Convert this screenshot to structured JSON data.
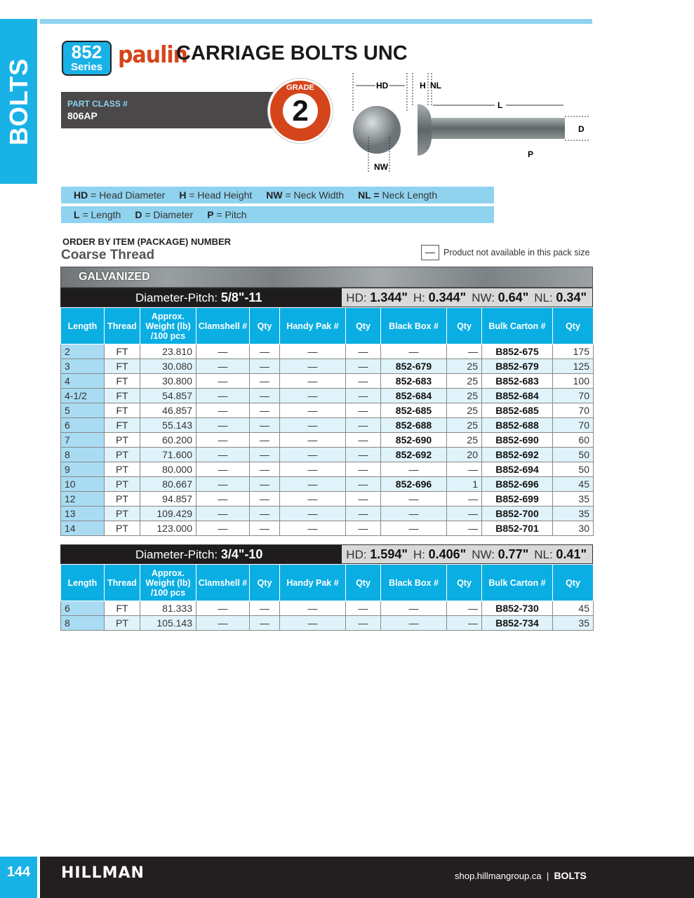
{
  "side_tab": "BOLTS",
  "series": {
    "number": "852",
    "label": "Series"
  },
  "brand": "paulin",
  "title": "CARRIAGE BOLTS UNC",
  "part_class": {
    "label": "PART CLASS #",
    "value": "806AP"
  },
  "grade": {
    "label": "GRADE",
    "value": "2"
  },
  "diagram_labels": {
    "hd": "HD",
    "h": "H",
    "nl": "NL",
    "l": "L",
    "d": "D",
    "p": "P",
    "nw": "NW"
  },
  "legend": {
    "row1": [
      {
        "k": "HD",
        "v": " = Head Diameter"
      },
      {
        "k": "H",
        "v": " = Head Height"
      },
      {
        "k": "NW",
        "v": " = Neck Width"
      },
      {
        "k": "NL =",
        "v": " Neck Length"
      }
    ],
    "row2": [
      {
        "k": "L",
        "v": " = Length"
      },
      {
        "k": "D",
        "v": " = Diameter"
      },
      {
        "k": "P",
        "v": " = Pitch"
      }
    ]
  },
  "order_heading": "ORDER BY ITEM (PACKAGE) NUMBER",
  "thread_heading": "Coarse Thread",
  "na_symbol": "—",
  "na_text": "Product not available in this pack size",
  "finish": "GALVANIZED",
  "columns": [
    "Length",
    "Thread",
    "Approx. Weight (lb) /100 pcs",
    "Clamshell #",
    "Qty",
    "Handy Pak #",
    "Qty",
    "Black Box #",
    "Qty",
    "Bulk Carton #",
    "Qty"
  ],
  "tables": [
    {
      "dp_label": "Diameter-Pitch: ",
      "dp_value": "5/8\"-11",
      "dims": [
        {
          "k": "HD: ",
          "v": "1.344\""
        },
        {
          "k": "H: ",
          "v": "0.344\""
        },
        {
          "k": "NW: ",
          "v": "0.64\""
        },
        {
          "k": "NL: ",
          "v": "0.34\""
        }
      ],
      "rows": [
        [
          "2",
          "FT",
          "23.810",
          "—",
          "—",
          "—",
          "—",
          "—",
          "—",
          "B852-675",
          "175"
        ],
        [
          "3",
          "FT",
          "30.080",
          "—",
          "—",
          "—",
          "—",
          "852-679",
          "25",
          "B852-679",
          "125"
        ],
        [
          "4",
          "FT",
          "30.800",
          "—",
          "—",
          "—",
          "—",
          "852-683",
          "25",
          "B852-683",
          "100"
        ],
        [
          "4-1/2",
          "FT",
          "54.857",
          "—",
          "—",
          "—",
          "—",
          "852-684",
          "25",
          "B852-684",
          "70"
        ],
        [
          "5",
          "FT",
          "46.857",
          "—",
          "—",
          "—",
          "—",
          "852-685",
          "25",
          "B852-685",
          "70"
        ],
        [
          "6",
          "FT",
          "55.143",
          "—",
          "—",
          "—",
          "—",
          "852-688",
          "25",
          "B852-688",
          "70"
        ],
        [
          "7",
          "PT",
          "60.200",
          "—",
          "—",
          "—",
          "—",
          "852-690",
          "25",
          "B852-690",
          "60"
        ],
        [
          "8",
          "PT",
          "71.600",
          "—",
          "—",
          "—",
          "—",
          "852-692",
          "20",
          "B852-692",
          "50"
        ],
        [
          "9",
          "PT",
          "80.000",
          "—",
          "—",
          "—",
          "—",
          "—",
          "—",
          "B852-694",
          "50"
        ],
        [
          "10",
          "PT",
          "80.667",
          "—",
          "—",
          "—",
          "—",
          "852-696",
          "1",
          "B852-696",
          "45"
        ],
        [
          "12",
          "PT",
          "94.857",
          "—",
          "—",
          "—",
          "—",
          "—",
          "—",
          "B852-699",
          "35"
        ],
        [
          "13",
          "PT",
          "109.429",
          "—",
          "—",
          "—",
          "—",
          "—",
          "—",
          "B852-700",
          "35"
        ],
        [
          "14",
          "PT",
          "123.000",
          "—",
          "—",
          "—",
          "—",
          "—",
          "—",
          "B852-701",
          "30"
        ]
      ]
    },
    {
      "dp_label": "Diameter-Pitch: ",
      "dp_value": "3/4\"-10",
      "dims": [
        {
          "k": "HD: ",
          "v": "1.594\""
        },
        {
          "k": "H: ",
          "v": "0.406\""
        },
        {
          "k": "NW: ",
          "v": "0.77\""
        },
        {
          "k": "NL: ",
          "v": "0.41\""
        }
      ],
      "rows": [
        [
          "6",
          "FT",
          "81.333",
          "—",
          "—",
          "—",
          "—",
          "—",
          "—",
          "B852-730",
          "45"
        ],
        [
          "8",
          "PT",
          "105.143",
          "—",
          "—",
          "—",
          "—",
          "—",
          "—",
          "B852-734",
          "35"
        ]
      ]
    }
  ],
  "footer": {
    "page": "144",
    "logo": "HILLMAN",
    "site": "shop.hillmangroup.ca",
    "separator": "|",
    "section": "BOLTS"
  },
  "colors": {
    "accent": "#19b2e6",
    "light_blue": "#8fd3ef",
    "brand_orange": "#d5451b",
    "dark": "#231f20"
  }
}
